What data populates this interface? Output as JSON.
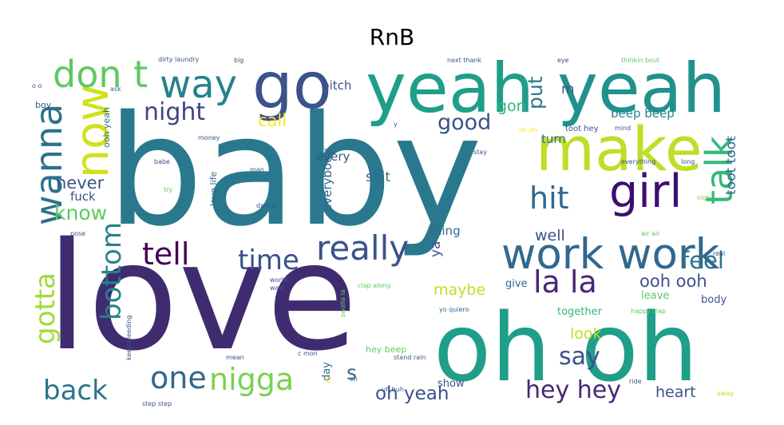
{
  "chart_data": {
    "type": "wordcloud",
    "title": "RnB",
    "background": "#ffffff",
    "colormap": "viridis",
    "words": [
      {
        "text": "baby",
        "weight": 1.0,
        "color": "#2a788e",
        "orientation": "horizontal"
      },
      {
        "text": "love",
        "weight": 0.98,
        "color": "#3f2c70",
        "orientation": "horizontal"
      },
      {
        "text": "oh oh",
        "weight": 0.62,
        "color": "#1f9e89",
        "orientation": "horizontal"
      },
      {
        "text": "yeah",
        "weight": 0.45,
        "color": "#1f9e89",
        "orientation": "horizontal"
      },
      {
        "text": "yeah",
        "weight": 0.45,
        "color": "#21918c",
        "orientation": "horizontal"
      },
      {
        "text": "go",
        "weight": 0.42,
        "color": "#3b528b",
        "orientation": "horizontal"
      },
      {
        "text": "make",
        "weight": 0.4,
        "color": "#bddf26",
        "orientation": "horizontal"
      },
      {
        "text": "work work",
        "weight": 0.28,
        "color": "#31688e",
        "orientation": "horizontal"
      },
      {
        "text": "girl",
        "weight": 0.3,
        "color": "#3b0f70",
        "orientation": "horizontal"
      },
      {
        "text": "now",
        "weight": 0.3,
        "color": "#d0e11c",
        "orientation": "vertical"
      },
      {
        "text": "way",
        "weight": 0.25,
        "color": "#26828e",
        "orientation": "horizontal"
      },
      {
        "text": "don t",
        "weight": 0.24,
        "color": "#5ec962",
        "orientation": "horizontal"
      },
      {
        "text": "wanna",
        "weight": 0.24,
        "color": "#2c728e",
        "orientation": "vertical"
      },
      {
        "text": "talk",
        "weight": 0.24,
        "color": "#35b779",
        "orientation": "vertical"
      },
      {
        "text": "really",
        "weight": 0.22,
        "color": "#3b528b",
        "orientation": "horizontal"
      },
      {
        "text": "la la",
        "weight": 0.2,
        "color": "#482677",
        "orientation": "horizontal"
      },
      {
        "text": "tell",
        "weight": 0.2,
        "color": "#440154",
        "orientation": "horizontal"
      },
      {
        "text": "one",
        "weight": 0.2,
        "color": "#31688e",
        "orientation": "horizontal"
      },
      {
        "text": "nigga",
        "weight": 0.2,
        "color": "#7ad151",
        "orientation": "horizontal"
      },
      {
        "text": "hit",
        "weight": 0.2,
        "color": "#31688e",
        "orientation": "horizontal"
      },
      {
        "text": "time",
        "weight": 0.18,
        "color": "#3b528b",
        "orientation": "horizontal"
      },
      {
        "text": "bottom",
        "weight": 0.18,
        "color": "#26828e",
        "orientation": "vertical"
      },
      {
        "text": "gotta",
        "weight": 0.18,
        "color": "#a0da39",
        "orientation": "vertical"
      },
      {
        "text": "back",
        "weight": 0.18,
        "color": "#2c728e",
        "orientation": "horizontal"
      },
      {
        "text": "say",
        "weight": 0.16,
        "color": "#3b528b",
        "orientation": "horizontal"
      },
      {
        "text": "hey hey",
        "weight": 0.16,
        "color": "#482878",
        "orientation": "horizontal"
      },
      {
        "text": "night",
        "weight": 0.16,
        "color": "#414487",
        "orientation": "horizontal"
      },
      {
        "text": "feel",
        "weight": 0.15,
        "color": "#2c728e",
        "orientation": "horizontal"
      },
      {
        "text": "good",
        "weight": 0.14,
        "color": "#3b528b",
        "orientation": "horizontal"
      },
      {
        "text": "know",
        "weight": 0.13,
        "color": "#5ec962",
        "orientation": "horizontal"
      },
      {
        "text": "put",
        "weight": 0.13,
        "color": "#2a788e",
        "orientation": "vertical"
      },
      {
        "text": "s",
        "weight": 0.13,
        "color": "#31688e",
        "orientation": "horizontal"
      },
      {
        "text": "oh yeah",
        "weight": 0.12,
        "color": "#3b528b",
        "orientation": "horizontal"
      },
      {
        "text": "ooh ooh",
        "weight": 0.11,
        "color": "#3b528b",
        "orientation": "horizontal"
      },
      {
        "text": "call",
        "weight": 0.11,
        "color": "#fde725",
        "orientation": "horizontal"
      },
      {
        "text": "never",
        "weight": 0.11,
        "color": "#3b528b",
        "orientation": "horizontal"
      },
      {
        "text": "gon",
        "weight": 0.1,
        "color": "#35b779",
        "orientation": "horizontal"
      },
      {
        "text": "look",
        "weight": 0.1,
        "color": "#bddf26",
        "orientation": "horizontal"
      },
      {
        "text": "maybe",
        "weight": 0.1,
        "color": "#bddf26",
        "orientation": "horizontal"
      },
      {
        "text": "heart",
        "weight": 0.1,
        "color": "#3b528b",
        "orientation": "horizontal"
      },
      {
        "text": "well",
        "weight": 0.1,
        "color": "#3b528b",
        "orientation": "horizontal"
      },
      {
        "text": "toot toot",
        "weight": 0.09,
        "color": "#31688e",
        "orientation": "vertical"
      },
      {
        "text": "m",
        "weight": 0.09,
        "color": "#3b528b",
        "orientation": "horizontal"
      },
      {
        "text": "ya",
        "weight": 0.09,
        "color": "#3b528b",
        "orientation": "vertical"
      },
      {
        "text": "shit",
        "weight": 0.09,
        "color": "#31688e",
        "orientation": "horizontal"
      },
      {
        "text": "thing",
        "weight": 0.08,
        "color": "#31688e",
        "orientation": "horizontal"
      },
      {
        "text": "beep beep",
        "weight": 0.08,
        "color": "#26828e",
        "orientation": "horizontal"
      },
      {
        "text": "bitch",
        "weight": 0.08,
        "color": "#3b528b",
        "orientation": "horizontal"
      },
      {
        "text": "every",
        "weight": 0.08,
        "color": "#3b528b",
        "orientation": "horizontal"
      },
      {
        "text": "everybody",
        "weight": 0.08,
        "color": "#31688e",
        "orientation": "vertical"
      },
      {
        "text": "fuck",
        "weight": 0.08,
        "color": "#3b528b",
        "orientation": "horizontal"
      },
      {
        "text": "turn",
        "weight": 0.08,
        "color": "#31688e",
        "orientation": "horizontal"
      },
      {
        "text": "together",
        "weight": 0.07,
        "color": "#35b779",
        "orientation": "horizontal"
      },
      {
        "text": "leave",
        "weight": 0.07,
        "color": "#5ec962",
        "orientation": "horizontal"
      },
      {
        "text": "body",
        "weight": 0.07,
        "color": "#3b528b",
        "orientation": "horizontal"
      },
      {
        "text": "give",
        "weight": 0.07,
        "color": "#31688e",
        "orientation": "horizontal"
      },
      {
        "text": "show",
        "weight": 0.07,
        "color": "#3b528b",
        "orientation": "horizontal"
      },
      {
        "text": "day",
        "weight": 0.07,
        "color": "#31688e",
        "orientation": "vertical"
      },
      {
        "text": "c",
        "weight": 0.07,
        "color": "#fde725",
        "orientation": "horizontal"
      },
      {
        "text": "love life",
        "weight": 0.06,
        "color": "#31688e",
        "orientation": "vertical"
      },
      {
        "text": "hey beep",
        "weight": 0.06,
        "color": "#5ec962",
        "orientation": "horizontal"
      },
      {
        "text": "ooh yeah",
        "weight": 0.06,
        "color": "#31688e",
        "orientation": "vertical"
      },
      {
        "text": "boy",
        "weight": 0.06,
        "color": "#3b528b",
        "orientation": "horizontal"
      },
      {
        "text": "toot hey",
        "weight": 0.05,
        "color": "#3b528b",
        "orientation": "horizontal"
      },
      {
        "text": "yo quiero",
        "weight": 0.04,
        "color": "#31688e",
        "orientation": "horizontal"
      },
      {
        "text": "mind",
        "weight": 0.04,
        "color": "#3b528b",
        "orientation": "horizontal"
      },
      {
        "text": "stay",
        "weight": 0.04,
        "color": "#3b528b",
        "orientation": "horizontal"
      },
      {
        "text": "everything",
        "weight": 0.04,
        "color": "#3b528b",
        "orientation": "horizontal"
      },
      {
        "text": "money",
        "weight": 0.04,
        "color": "#3b528b",
        "orientation": "horizontal"
      },
      {
        "text": "man",
        "weight": 0.04,
        "color": "#3b528b",
        "orientation": "horizontal"
      },
      {
        "text": "babe",
        "weight": 0.04,
        "color": "#3b528b",
        "orientation": "horizontal"
      },
      {
        "text": "dirty laundry",
        "weight": 0.04,
        "color": "#3b528b",
        "orientation": "horizontal"
      },
      {
        "text": "big",
        "weight": 0.04,
        "color": "#3b528b",
        "orientation": "horizontal"
      },
      {
        "text": "ask",
        "weight": 0.04,
        "color": "#31688e",
        "orientation": "horizontal"
      },
      {
        "text": "o o",
        "weight": 0.04,
        "color": "#3b528b",
        "orientation": "horizontal"
      },
      {
        "text": "next thank",
        "weight": 0.04,
        "color": "#3b528b",
        "orientation": "horizontal"
      },
      {
        "text": "eye",
        "weight": 0.04,
        "color": "#3b528b",
        "orientation": "horizontal"
      },
      {
        "text": "thinkin bout",
        "weight": 0.04,
        "color": "#5ec962",
        "orientation": "horizontal"
      },
      {
        "text": "y",
        "weight": 0.04,
        "color": "#3b528b",
        "orientation": "horizontal"
      },
      {
        "text": "oh ah",
        "weight": 0.035,
        "color": "#fde725",
        "orientation": "horizontal"
      },
      {
        "text": "long",
        "weight": 0.035,
        "color": "#3b528b",
        "orientation": "horizontal"
      },
      {
        "text": "nigh",
        "weight": 0.035,
        "color": "#7ad151",
        "orientation": "horizontal"
      },
      {
        "text": "air air",
        "weight": 0.035,
        "color": "#5ec962",
        "orientation": "horizontal"
      },
      {
        "text": "real",
        "weight": 0.035,
        "color": "#3b528b",
        "orientation": "horizontal"
      },
      {
        "text": "pose",
        "weight": 0.04,
        "color": "#3b528b",
        "orientation": "horizontal"
      },
      {
        "text": "try",
        "weight": 0.04,
        "color": "#5ec962",
        "orientation": "horizontal"
      },
      {
        "text": "dance",
        "weight": 0.035,
        "color": "#3b528b",
        "orientation": "horizontal"
      },
      {
        "text": "world",
        "weight": 0.035,
        "color": "#3b528b",
        "orientation": "horizontal"
      },
      {
        "text": "walk",
        "weight": 0.035,
        "color": "#3b528b",
        "orientation": "horizontal"
      },
      {
        "text": "clap along",
        "weight": 0.035,
        "color": "#5ec962",
        "orientation": "horizontal"
      },
      {
        "text": "swalla la",
        "weight": 0.035,
        "color": "#5ec962",
        "orientation": "vertical"
      },
      {
        "text": "happy clap",
        "weight": 0.035,
        "color": "#5ec962",
        "orientation": "horizontal"
      },
      {
        "text": "keep bleeding",
        "weight": 0.035,
        "color": "#3b528b",
        "orientation": "vertical"
      },
      {
        "text": "mean",
        "weight": 0.035,
        "color": "#3b528b",
        "orientation": "horizontal"
      },
      {
        "text": "c mon",
        "weight": 0.035,
        "color": "#3b528b",
        "orientation": "horizontal"
      },
      {
        "text": "stand rain",
        "weight": 0.035,
        "color": "#3b528b",
        "orientation": "horizontal"
      },
      {
        "text": "oh",
        "weight": 0.035,
        "color": "#3b528b",
        "orientation": "horizontal"
      },
      {
        "text": "uh huh",
        "weight": 0.035,
        "color": "#3b528b",
        "orientation": "horizontal"
      },
      {
        "text": "ride",
        "weight": 0.035,
        "color": "#3b528b",
        "orientation": "horizontal"
      },
      {
        "text": "away",
        "weight": 0.035,
        "color": "#bddf26",
        "orientation": "horizontal"
      },
      {
        "text": "step step",
        "weight": 0.035,
        "color": "#3b528b",
        "orientation": "horizontal"
      }
    ]
  }
}
